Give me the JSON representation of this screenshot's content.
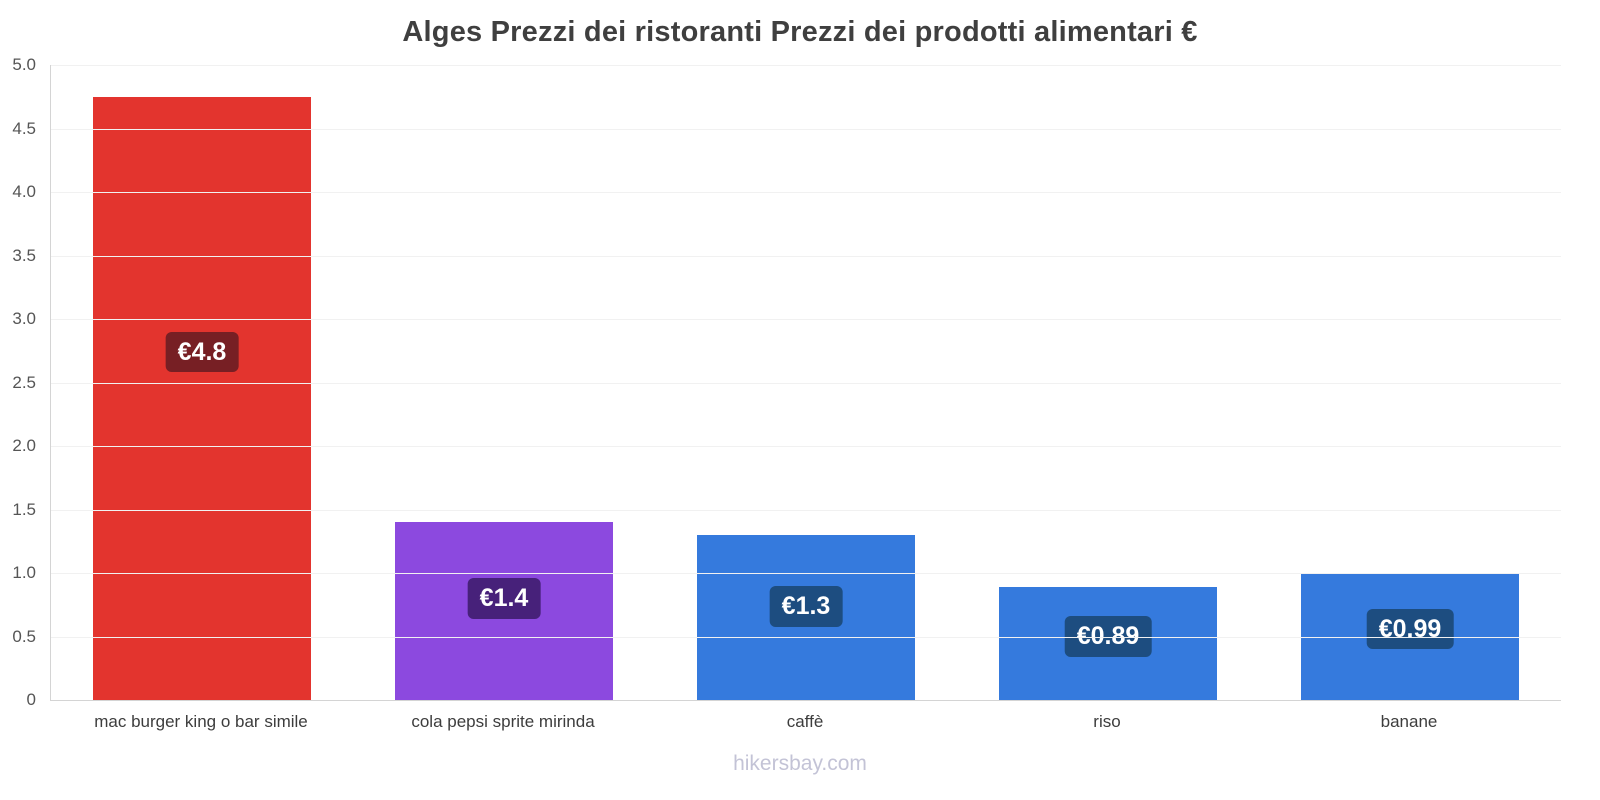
{
  "page": {
    "title": "Alges Prezzi dei ristoranti Prezzi dei prodotti alimentari €",
    "footer": "hikersbay.com"
  },
  "chart_data": {
    "type": "bar",
    "title": "Alges Prezzi dei ristoranti Prezzi dei prodotti alimentari €",
    "categories": [
      "mac burger king o bar simile",
      "cola pepsi sprite mirinda",
      "caffè",
      "riso",
      "banane"
    ],
    "values": [
      4.75,
      1.4,
      1.3,
      0.89,
      0.99
    ],
    "data_labels": [
      "€4.8",
      "€1.4",
      "€1.3",
      "€0.89",
      "€0.99"
    ],
    "bar_colors": [
      "#e3342e",
      "#8c49df",
      "#357add",
      "#357add",
      "#357add"
    ],
    "label_bg_colors": [
      "#771f24",
      "#47217a",
      "#1d4d80",
      "#1d4d80",
      "#1d4d80"
    ],
    "xlabel": "",
    "ylabel": "",
    "ylim": [
      0,
      5
    ],
    "yticks": [
      "5.0",
      "4.5",
      "4.0",
      "3.5",
      "3.0",
      "2.5",
      "2.0",
      "1.5",
      "1.0",
      "0.5",
      "0"
    ],
    "grid": true,
    "legend": false
  }
}
